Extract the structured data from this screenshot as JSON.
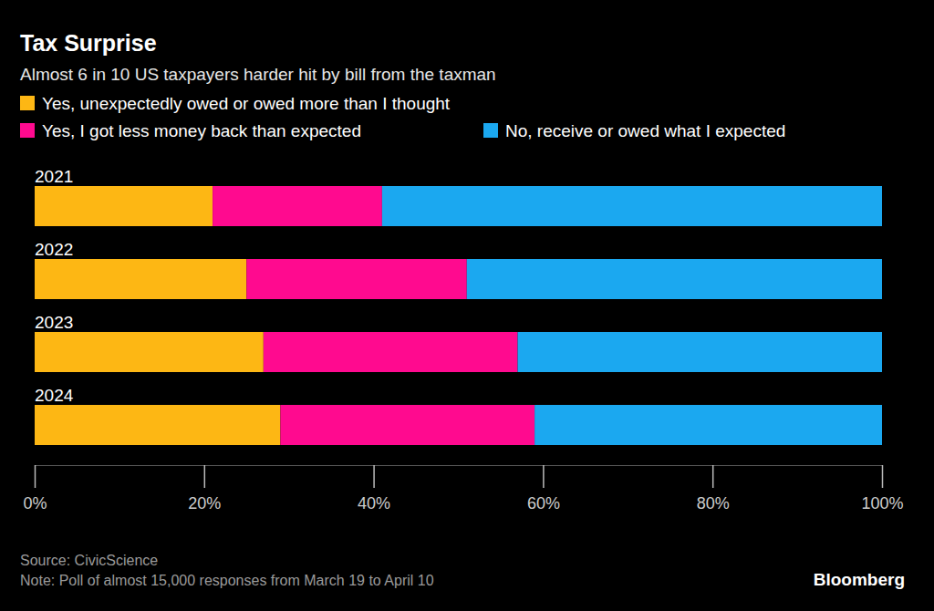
{
  "chart_data": {
    "type": "bar",
    "orientation": "horizontal",
    "stacked": true,
    "grid": false,
    "legend": "top",
    "title": "Tax Surprise",
    "subtitle": "Almost 6 in 10 US taxpayers harder hit by bill from the taxman",
    "categories": [
      "2021",
      "2022",
      "2023",
      "2024"
    ],
    "series": [
      {
        "name": "Yes, unexpectedly owed or owed more than I thought",
        "color": "#fdb714",
        "values": [
          21,
          25,
          27,
          29
        ]
      },
      {
        "name": "Yes, I got less money back than expected",
        "color": "#ff0a8f",
        "values": [
          20,
          26,
          30,
          30
        ]
      },
      {
        "name": "No, receive or owed what I expected",
        "color": "#1ba8f0",
        "values": [
          59,
          49,
          43,
          41
        ]
      }
    ],
    "xlim": [
      0,
      100
    ],
    "xticks": [
      {
        "value": 0,
        "label": "0%"
      },
      {
        "value": 20,
        "label": "20%"
      },
      {
        "value": 40,
        "label": "40%"
      },
      {
        "value": 60,
        "label": "60%"
      },
      {
        "value": 80,
        "label": "80%"
      },
      {
        "value": 100,
        "label": "100%"
      }
    ],
    "source": "Source: CivicScience",
    "note": "Note: Poll of almost 15,000 responses from March 19 to April 10",
    "credit": "Bloomberg"
  }
}
